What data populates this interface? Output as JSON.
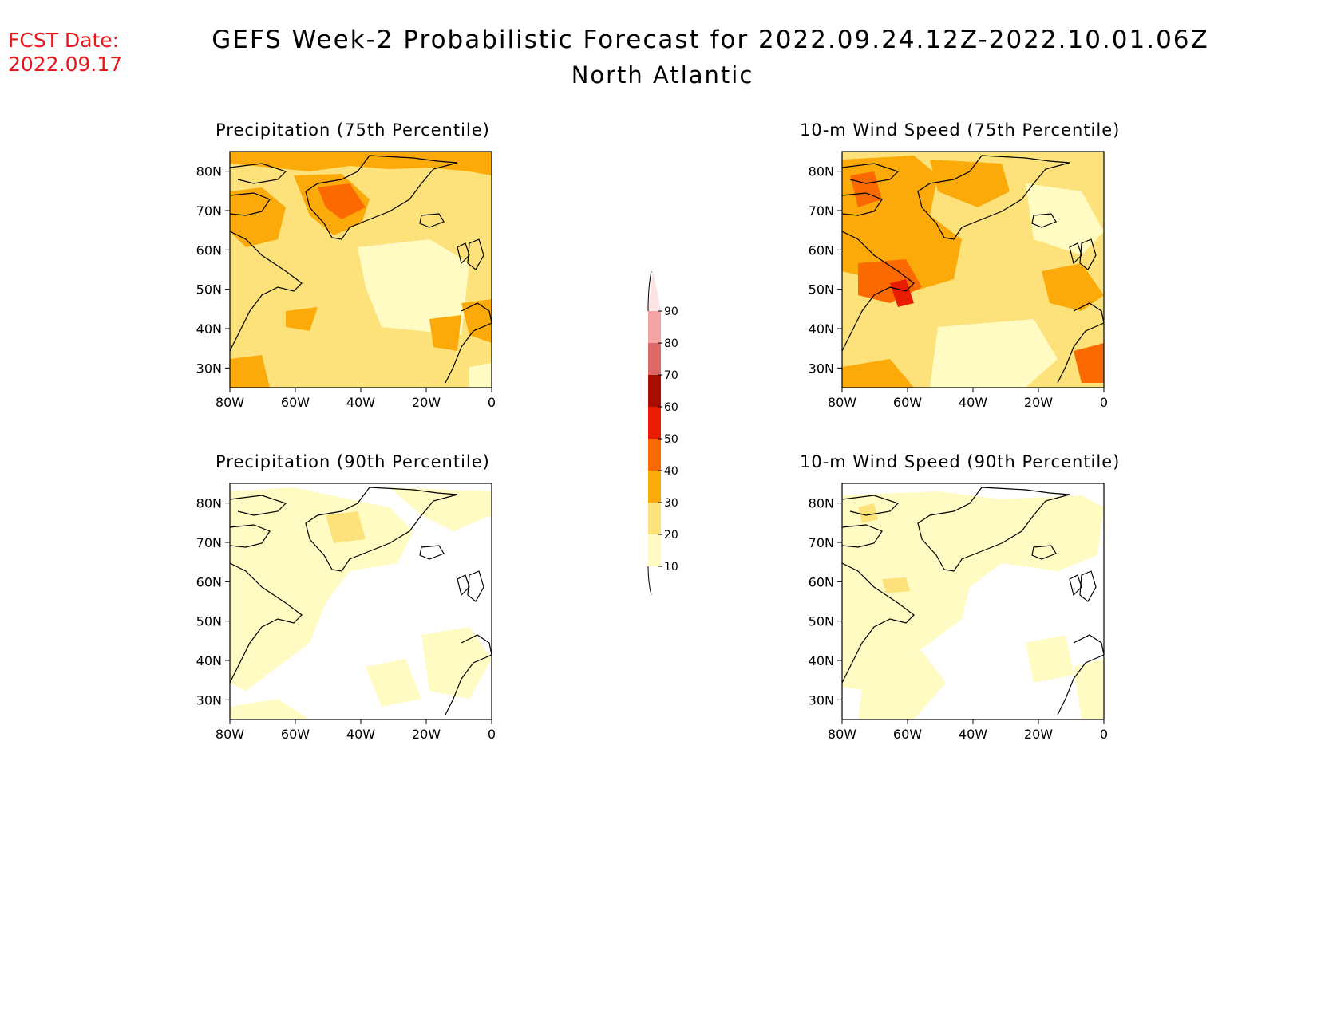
{
  "header": {
    "fcst_label": "FCST Date:",
    "fcst_date": "2022.09.17",
    "title": "GEFS Week-2 Probabilistic Forecast for 2022.09.24.12Z-2022.10.01.06Z",
    "region": "North Atlantic"
  },
  "panels": [
    {
      "id": "precip75",
      "title": "Precipitation (75th Percentile)"
    },
    {
      "id": "wind75",
      "title": "10-m Wind Speed (75th Percentile)"
    },
    {
      "id": "precip90",
      "title": "Precipitation (90th Percentile)"
    },
    {
      "id": "wind90",
      "title": "10-m Wind Speed (90th Percentile)"
    }
  ],
  "axes": {
    "lat_labels": [
      "80N",
      "70N",
      "60N",
      "50N",
      "40N",
      "30N"
    ],
    "lon_labels": [
      "80W",
      "60W",
      "40W",
      "20W",
      "0"
    ]
  },
  "colorbar": {
    "levels": [
      "10",
      "20",
      "30",
      "40",
      "50",
      "60",
      "70",
      "80",
      "90"
    ],
    "colors": [
      "#fffbc2",
      "#fde27b",
      "#fca90a",
      "#fb6a00",
      "#e81c00",
      "#a80d00",
      "#de6868",
      "#f5a3a3",
      "#fde3e3"
    ]
  }
}
